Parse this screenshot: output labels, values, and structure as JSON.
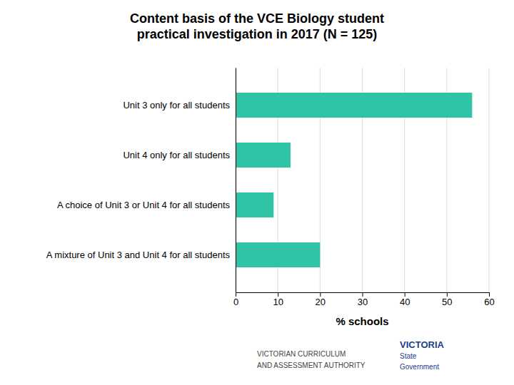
{
  "chart_data": {
    "type": "bar",
    "orientation": "horizontal",
    "title": "Content basis of the VCE Biology student\npractical investigation in 2017 (N = 125)",
    "categories": [
      "A mixture of Unit 3 and Unit 4 for all students",
      "A choice of Unit 3 or Unit 4 for all students",
      "Unit 4 only for all students",
      "Unit 3 only for all students"
    ],
    "values": [
      20,
      9,
      13,
      56
    ],
    "color": "#2ec4a5",
    "xlabel": "% schools",
    "xlim": [
      0,
      60
    ],
    "xticks": [
      0,
      10,
      20,
      30,
      40,
      50,
      60
    ],
    "grid": true,
    "annotations": [
      "VICTORIAN CURRICULUM",
      "AND ASSESSMENT AUTHORITY",
      "VICTORIA",
      "State",
      "Government"
    ]
  }
}
